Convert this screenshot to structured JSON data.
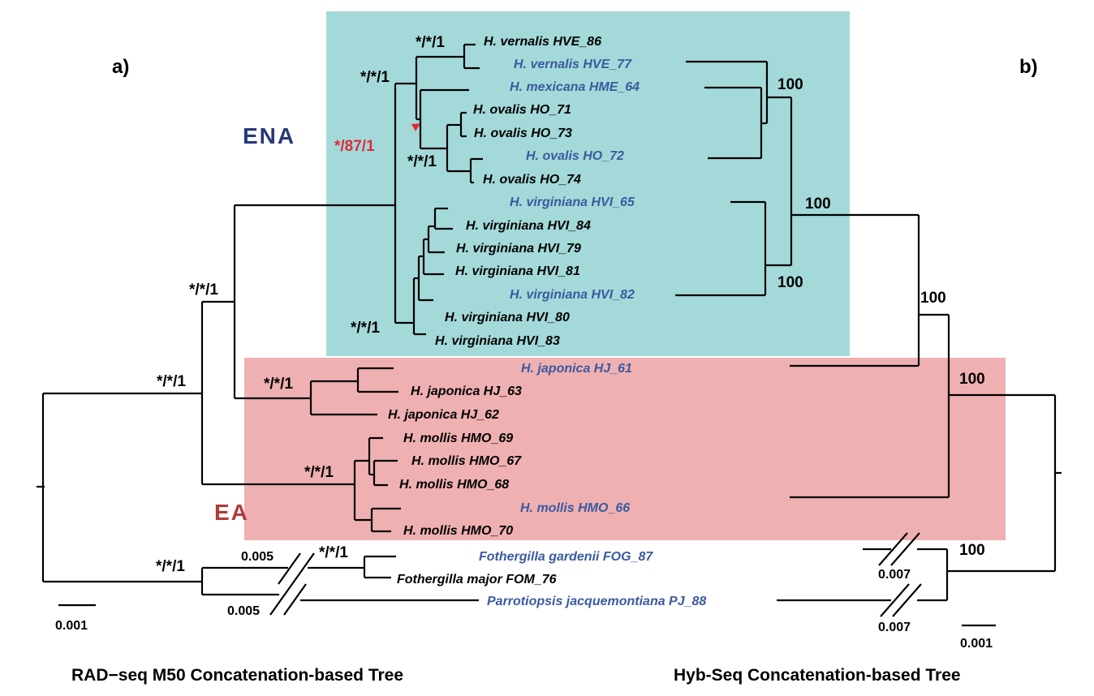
{
  "panel_labels": {
    "a": "a)",
    "b": "b)"
  },
  "clades": {
    "ena": "ENA",
    "ea": "EA"
  },
  "colors": {
    "ena_box": "#a4d9d9",
    "ea_box": "#efb0b1",
    "ena_text": "#253a7a",
    "ea_text": "#b03a3a",
    "red_label": "#e02a3c",
    "blue_taxon": "#3a5aa0",
    "black": "#000000"
  },
  "taxa": [
    {
      "name": "H. vernalis HVE_86",
      "color": "black"
    },
    {
      "name": "H. vernalis HVE_77",
      "color": "blue"
    },
    {
      "name": "H. mexicana HME_64",
      "color": "blue"
    },
    {
      "name": "H. ovalis HO_71",
      "color": "black"
    },
    {
      "name": "H. ovalis HO_73",
      "color": "black"
    },
    {
      "name": "H. ovalis HO_72",
      "color": "blue"
    },
    {
      "name": "H. ovalis HO_74",
      "color": "black"
    },
    {
      "name": "H. virginiana HVI_65",
      "color": "blue"
    },
    {
      "name": "H. virginiana HVI_84",
      "color": "black"
    },
    {
      "name": "H. virginiana HVI_79",
      "color": "black"
    },
    {
      "name": "H. virginiana HVI_81",
      "color": "black"
    },
    {
      "name": "H. virginiana HVI_82",
      "color": "blue"
    },
    {
      "name": "H. virginiana HVI_80",
      "color": "black"
    },
    {
      "name": "H. virginiana HVI_83",
      "color": "black"
    },
    {
      "name": "H. japonica HJ_61",
      "color": "blue"
    },
    {
      "name": "H. japonica HJ_63",
      "color": "black"
    },
    {
      "name": "H. japonica HJ_62",
      "color": "black"
    },
    {
      "name": "H. mollis HMO_69",
      "color": "black"
    },
    {
      "name": "H. mollis HMO_67",
      "color": "black"
    },
    {
      "name": "H. mollis HMO_68",
      "color": "black"
    },
    {
      "name": "H. mollis HMO_66",
      "color": "blue"
    },
    {
      "name": "H. mollis HMO_70",
      "color": "black"
    },
    {
      "name": "Fothergilla gardenii FOG_87",
      "color": "blue"
    },
    {
      "name": "Fothergilla major FOM_76",
      "color": "black"
    },
    {
      "name": "Parrotiopsis jacquemontiana PJ_88",
      "color": "blue"
    }
  ],
  "support_a": {
    "vernalis": "*/*/1",
    "hamamelis_ena_upper": "*/*/1",
    "ovalis_mexicana": "*/87/1",
    "ovalis": "*/*/1",
    "virginiana": "*/*/1",
    "hamamelis": "*/*/1",
    "ingroup": "*/*/1",
    "japonica": "*/*/1",
    "mollis": "*/*/1",
    "outgroup": "*/*/1",
    "fothergilla": "*/*/1"
  },
  "support_b": {
    "ena_upper": "100",
    "ena": "100",
    "virginiana": "100",
    "ena_ea": "100",
    "ea": "100",
    "outgroup": "100"
  },
  "branch_breaks": {
    "a_upper": "0.005",
    "a_lower": "0.005",
    "b_upper": "0.007",
    "b_lower": "0.007"
  },
  "scale_bars": {
    "a": "0.001",
    "b": "0.001"
  },
  "titles": {
    "a": "RAD−seq M50 Concatenation-based Tree",
    "b": "Hyb-Seq Concatenation-based Tree"
  }
}
